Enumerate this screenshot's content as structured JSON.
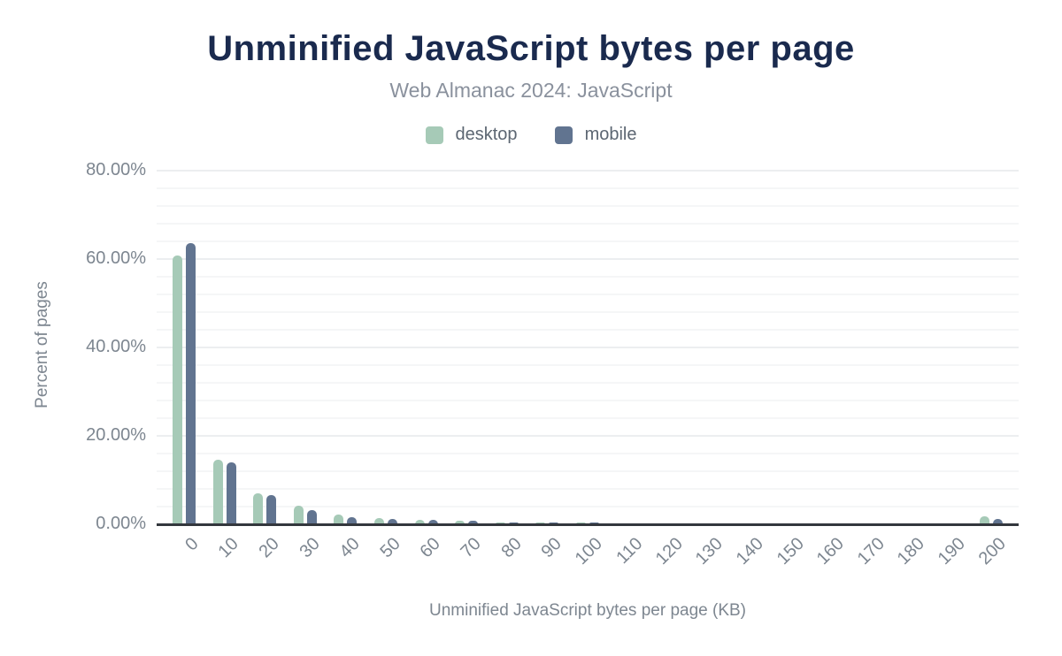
{
  "card": {
    "background": "#ffffff"
  },
  "chart_data": {
    "type": "bar",
    "title": "Unminified JavaScript bytes per page",
    "subtitle": "Web Almanac 2024: JavaScript",
    "xlabel": "Unminified JavaScript bytes per page (KB)",
    "ylabel": "Percent of pages",
    "categories": [
      "0",
      "10",
      "20",
      "30",
      "40",
      "50",
      "60",
      "70",
      "80",
      "90",
      "100",
      "110",
      "120",
      "130",
      "140",
      "150",
      "160",
      "170",
      "180",
      "190",
      "200"
    ],
    "series": [
      {
        "name": "desktop",
        "color": "#a6cab7",
        "values": [
          60.8,
          14.6,
          7.0,
          4.2,
          2.2,
          1.4,
          1.1,
          0.8,
          0.4,
          0.4,
          0.4,
          0.2,
          0.2,
          0.2,
          0.2,
          0.2,
          0.2,
          0.15,
          0.2,
          0.15,
          1.8
        ]
      },
      {
        "name": "mobile",
        "color": "#617490",
        "values": [
          63.6,
          14.1,
          6.6,
          3.3,
          1.7,
          1.2,
          1.1,
          0.9,
          0.5,
          0.5,
          0.5,
          0.3,
          0.25,
          0.25,
          0.25,
          0.3,
          0.25,
          0.2,
          0.3,
          0.25,
          1.2
        ]
      }
    ],
    "y_ticks": [
      "0.00%",
      "20.00%",
      "40.00%",
      "60.00%",
      "80.00%"
    ],
    "ylim": [
      0,
      80
    ],
    "y_major_step": 20,
    "y_minor_step": 4,
    "grid": "horizontal",
    "legend_position": "top",
    "colors": {
      "title": "#1a2a4e",
      "subtitle": "#8a919d",
      "axis_text": "#7d8690",
      "axis_line": "#33373d",
      "gridline_minor": "#f5f6f7",
      "gridline_major": "#eceef0"
    }
  }
}
